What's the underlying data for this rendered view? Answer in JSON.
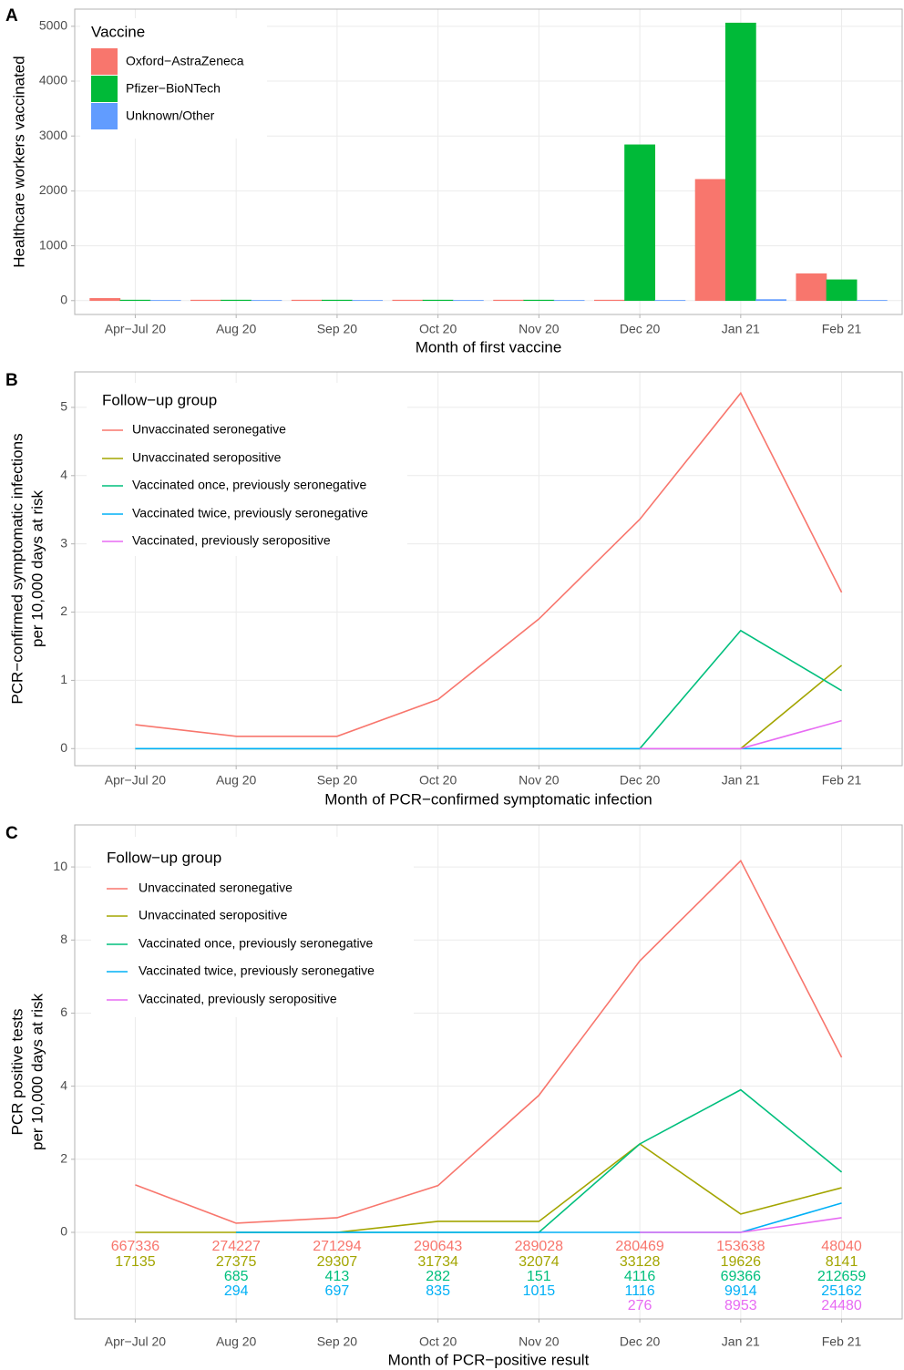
{
  "chart_data": [
    {
      "type": "bar",
      "panel_label": "A",
      "xlabel": "Month of first vaccine",
      "ylabel": "Healthcare workers vaccinated",
      "categories": [
        "Apr−Jul 20",
        "Aug 20",
        "Sep 20",
        "Oct 20",
        "Nov 20",
        "Dec 20",
        "Jan 21",
        "Feb 21"
      ],
      "legend_title": "Vaccine",
      "series": [
        {
          "name": "Oxford−AstraZeneca",
          "color": "#F8766D",
          "values": [
            40,
            10,
            10,
            10,
            10,
            10,
            2210,
            490
          ]
        },
        {
          "name": "Pfizer−BioNTech",
          "color": "#00BA38",
          "values": [
            10,
            10,
            10,
            10,
            10,
            2840,
            5060,
            380
          ]
        },
        {
          "name": "Unknown/Other",
          "color": "#619CFF",
          "values": [
            5,
            5,
            5,
            5,
            5,
            5,
            20,
            5
          ]
        }
      ],
      "ylim": [
        -253,
        5313
      ],
      "yticks": [
        0,
        1000,
        2000,
        3000,
        4000,
        5000
      ],
      "grid": true,
      "legend": "top-left"
    },
    {
      "type": "line",
      "panel_label": "B",
      "xlabel": "Month of PCR−confirmed symptomatic infection",
      "ylabel": [
        "PCR−confirmed symptomatic infections",
        "per 10,000 days at risk"
      ],
      "categories": [
        "Apr−Jul 20",
        "Aug 20",
        "Sep 20",
        "Oct 20",
        "Nov 20",
        "Dec 20",
        "Jan 21",
        "Feb 21"
      ],
      "legend_title": "Follow−up group",
      "series": [
        {
          "name": "Unvaccinated seronegative",
          "color": "#F8766D",
          "values": [
            0.35,
            0.18,
            0.18,
            0.72,
            1.9,
            3.36,
            5.21,
            2.29
          ]
        },
        {
          "name": "Unvaccinated seropositive",
          "color": "#A3A500",
          "values": [
            0,
            0,
            0,
            0,
            0,
            0,
            0,
            1.22
          ]
        },
        {
          "name": "Vaccinated once, previously seronegative",
          "color": "#00BF7D",
          "values": [
            null,
            0,
            0,
            0,
            0,
            0,
            1.73,
            0.85
          ]
        },
        {
          "name": "Vaccinated twice, previously seronegative",
          "color": "#00B0F6",
          "values": [
            0,
            0,
            0,
            0,
            0,
            0,
            0,
            0
          ]
        },
        {
          "name": "Vaccinated, previously seropositive",
          "color": "#E76BF3",
          "values": [
            null,
            null,
            null,
            null,
            null,
            0,
            0,
            0.41
          ]
        }
      ],
      "ylim": [
        -0.25,
        5.52
      ],
      "yticks": [
        0,
        1,
        2,
        3,
        4,
        5
      ],
      "grid": true,
      "legend": "top-left"
    },
    {
      "type": "line",
      "panel_label": "C",
      "xlabel": "Month of PCR−positive result",
      "ylabel": [
        "PCR positive tests",
        "per 10,000 days at risk"
      ],
      "categories": [
        "Apr−Jul 20",
        "Aug 20",
        "Sep 20",
        "Oct 20",
        "Nov 20",
        "Dec 20",
        "Jan 21",
        "Feb 21"
      ],
      "legend_title": "Follow−up group",
      "series": [
        {
          "name": "Unvaccinated seronegative",
          "color": "#F8766D",
          "values": [
            1.3,
            0.25,
            0.4,
            1.28,
            3.75,
            7.43,
            10.17,
            4.79
          ],
          "counts": [
            667336,
            274227,
            271294,
            290643,
            289028,
            280469,
            153638,
            48040
          ]
        },
        {
          "name": "Unvaccinated seropositive",
          "color": "#A3A500",
          "values": [
            0,
            0,
            0,
            0.3,
            0.3,
            2.42,
            0.5,
            1.22
          ],
          "counts": [
            17135,
            27375,
            29307,
            31734,
            32074,
            33128,
            19626,
            8141
          ]
        },
        {
          "name": "Vaccinated once, previously seronegative",
          "color": "#00BF7D",
          "values": [
            null,
            0,
            0,
            0,
            0,
            2.42,
            3.9,
            1.65
          ],
          "counts": [
            null,
            685,
            413,
            282,
            151,
            4116,
            69366,
            212659
          ]
        },
        {
          "name": "Vaccinated twice, previously seronegative",
          "color": "#00B0F6",
          "values": [
            null,
            0,
            0,
            0,
            0,
            0,
            0,
            0.8
          ],
          "counts": [
            null,
            294,
            697,
            835,
            1015,
            1116,
            9914,
            25162
          ]
        },
        {
          "name": "Vaccinated, previously seropositive",
          "color": "#E76BF3",
          "values": [
            null,
            null,
            null,
            null,
            null,
            0,
            0,
            0.4
          ],
          "counts": [
            null,
            null,
            null,
            null,
            null,
            276,
            8953,
            24480
          ]
        }
      ],
      "ylim": [
        -2.37,
        11.15
      ],
      "yticks": [
        0,
        2,
        4,
        6,
        8,
        10
      ],
      "grid": true,
      "legend": "top-left"
    }
  ]
}
